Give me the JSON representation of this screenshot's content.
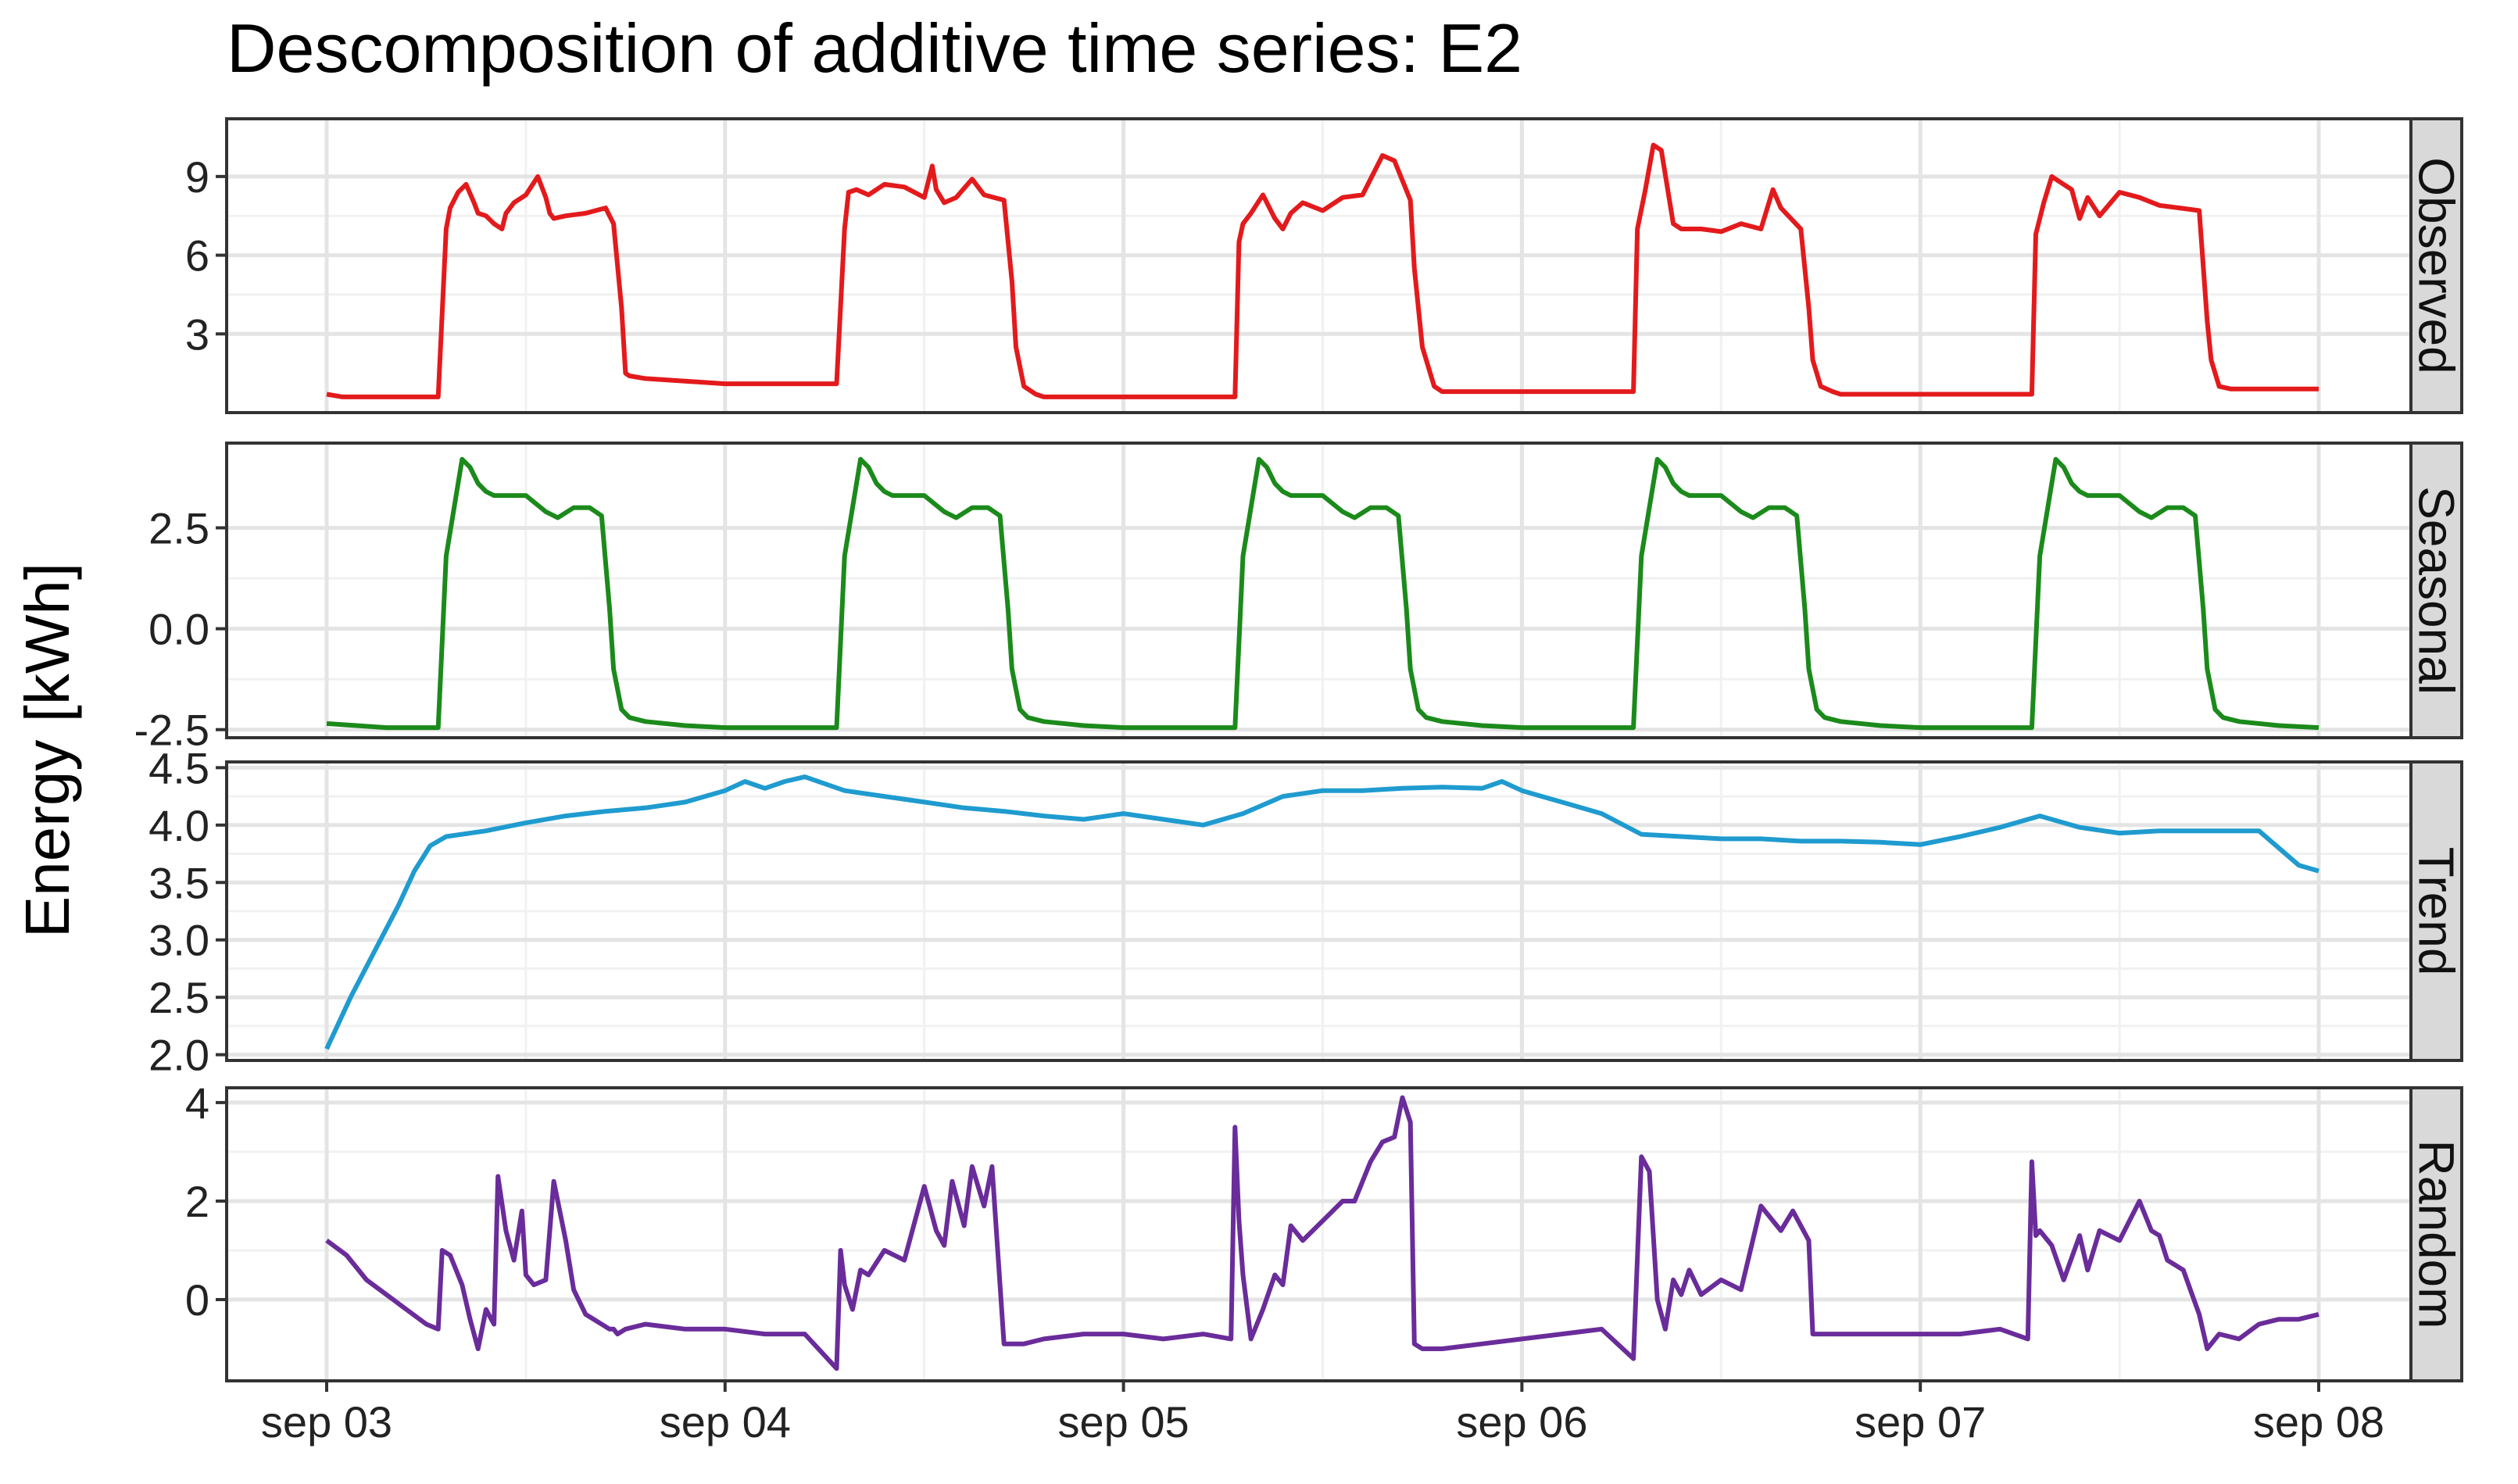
{
  "chart_data": {
    "type": "line",
    "title": "Descomposition of additive time series: E2",
    "ylabel": "Energy [kWh]",
    "xlabel": "",
    "x_ticks": [
      "sep 03",
      "sep 04",
      "sep 05",
      "sep 06",
      "sep 07",
      "sep 08"
    ],
    "x_range": [
      0,
      5
    ],
    "x_units": "days since sep 03",
    "colors": {
      "Observed": "#e31a1c",
      "Seasonal": "#1b8a1b",
      "Trend": "#1f9bcf",
      "Random": "#6a2c9a"
    },
    "panels": [
      {
        "name": "Observed",
        "ylim": [
          0,
          11.2
        ],
        "yticks": [
          3,
          6,
          9
        ],
        "ytick_labels": [
          "3",
          "6",
          "9"
        ],
        "x": [
          0,
          0.04,
          0.1,
          0.2,
          0.28,
          0.3,
          0.31,
          0.33,
          0.35,
          0.37,
          0.38,
          0.4,
          0.42,
          0.44,
          0.45,
          0.47,
          0.5,
          0.53,
          0.55,
          0.56,
          0.57,
          0.6,
          0.65,
          0.7,
          0.72,
          0.74,
          0.75,
          0.76,
          0.8,
          0.9,
          1.0,
          1.1,
          1.2,
          1.28,
          1.3,
          1.31,
          1.33,
          1.36,
          1.4,
          1.45,
          1.5,
          1.52,
          1.53,
          1.55,
          1.58,
          1.62,
          1.65,
          1.7,
          1.72,
          1.73,
          1.75,
          1.78,
          1.8,
          1.9,
          2.0,
          2.1,
          2.2,
          2.28,
          2.29,
          2.3,
          2.32,
          2.35,
          2.38,
          2.4,
          2.42,
          2.45,
          2.5,
          2.55,
          2.6,
          2.65,
          2.68,
          2.72,
          2.73,
          2.75,
          2.78,
          2.8,
          2.9,
          3.0,
          3.1,
          3.2,
          3.28,
          3.29,
          3.31,
          3.33,
          3.35,
          3.38,
          3.4,
          3.45,
          3.5,
          3.55,
          3.6,
          3.63,
          3.65,
          3.7,
          3.72,
          3.73,
          3.75,
          3.78,
          3.8,
          3.9,
          4.0,
          4.1,
          4.2,
          4.28,
          4.29,
          4.31,
          4.33,
          4.35,
          4.38,
          4.4,
          4.42,
          4.45,
          4.5,
          4.55,
          4.6,
          4.65,
          4.7,
          4.72,
          4.73,
          4.75,
          4.78,
          4.8,
          4.9,
          5.0
        ],
        "values": [
          0.7,
          0.6,
          0.6,
          0.6,
          0.6,
          7.0,
          7.8,
          8.4,
          8.7,
          8.0,
          7.6,
          7.5,
          7.2,
          7.0,
          7.6,
          8.0,
          8.3,
          9.0,
          8.2,
          7.6,
          7.4,
          7.5,
          7.6,
          7.8,
          7.2,
          4.0,
          1.5,
          1.4,
          1.3,
          1.2,
          1.1,
          1.1,
          1.1,
          1.1,
          7.0,
          8.4,
          8.5,
          8.3,
          8.7,
          8.6,
          8.2,
          9.4,
          8.5,
          8.0,
          8.2,
          8.9,
          8.3,
          8.1,
          5.0,
          2.5,
          1.0,
          0.7,
          0.6,
          0.6,
          0.6,
          0.6,
          0.6,
          0.6,
          6.5,
          7.2,
          7.6,
          8.3,
          7.4,
          7.0,
          7.6,
          8.0,
          7.7,
          8.2,
          8.3,
          9.8,
          9.6,
          8.1,
          5.5,
          2.5,
          1.0,
          0.8,
          0.8,
          0.8,
          0.8,
          0.8,
          0.8,
          7.0,
          8.5,
          10.2,
          10.0,
          7.2,
          7.0,
          7.0,
          6.9,
          7.2,
          7.0,
          8.5,
          7.8,
          7.0,
          4.0,
          2.0,
          1.0,
          0.8,
          0.7,
          0.7,
          0.7,
          0.7,
          0.7,
          0.7,
          6.8,
          8.0,
          9.0,
          8.8,
          8.5,
          7.4,
          8.2,
          7.5,
          8.4,
          8.2,
          7.9,
          7.8,
          7.7,
          3.5,
          2.0,
          1.0,
          0.9,
          0.9,
          0.9,
          0.9
        ]
      },
      {
        "name": "Seasonal",
        "ylim": [
          -2.7,
          4.6
        ],
        "yticks": [
          -2.5,
          0.0,
          2.5
        ],
        "ytick_labels": [
          "-2.5",
          "0.0",
          "2.5"
        ],
        "x": [
          0,
          0.15,
          0.28,
          0.3,
          0.32,
          0.34,
          0.36,
          0.38,
          0.4,
          0.42,
          0.45,
          0.5,
          0.55,
          0.58,
          0.62,
          0.66,
          0.69,
          0.71,
          0.72,
          0.74,
          0.76,
          0.8,
          0.9,
          1.0
        ],
        "values": [
          -2.35,
          -2.45,
          -2.45,
          1.8,
          3.0,
          4.2,
          4.0,
          3.6,
          3.4,
          3.3,
          3.3,
          3.3,
          2.9,
          2.75,
          3.0,
          3.0,
          2.8,
          0.5,
          -1.0,
          -2.0,
          -2.2,
          -2.3,
          -2.4,
          -2.45
        ],
        "period": 1,
        "note": "x values repeat with a one-day period across sep 03 to sep 08"
      },
      {
        "name": "Trend",
        "ylim": [
          1.95,
          4.55
        ],
        "yticks": [
          2.0,
          2.5,
          3.0,
          3.5,
          4.0,
          4.5
        ],
        "ytick_labels": [
          "2.0",
          "2.5",
          "3.0",
          "3.5",
          "4.0",
          "4.5"
        ],
        "x": [
          0,
          0.06,
          0.12,
          0.18,
          0.22,
          0.26,
          0.3,
          0.4,
          0.5,
          0.6,
          0.7,
          0.8,
          0.9,
          1.0,
          1.05,
          1.1,
          1.15,
          1.2,
          1.3,
          1.4,
          1.5,
          1.6,
          1.7,
          1.8,
          1.9,
          2.0,
          2.1,
          2.2,
          2.3,
          2.4,
          2.5,
          2.6,
          2.7,
          2.8,
          2.9,
          2.95,
          3.0,
          3.05,
          3.1,
          3.2,
          3.3,
          3.4,
          3.5,
          3.6,
          3.7,
          3.8,
          3.9,
          4.0,
          4.1,
          4.2,
          4.3,
          4.4,
          4.5,
          4.6,
          4.7,
          4.8,
          4.85,
          4.9,
          4.95,
          5.0
        ],
        "values": [
          2.05,
          2.5,
          2.9,
          3.3,
          3.6,
          3.82,
          3.9,
          3.95,
          4.02,
          4.08,
          4.12,
          4.15,
          4.2,
          4.3,
          4.38,
          4.32,
          4.38,
          4.42,
          4.3,
          4.25,
          4.2,
          4.15,
          4.12,
          4.08,
          4.05,
          4.1,
          4.05,
          4.0,
          4.1,
          4.25,
          4.3,
          4.3,
          4.32,
          4.33,
          4.32,
          4.38,
          4.3,
          4.25,
          4.2,
          4.1,
          3.92,
          3.9,
          3.88,
          3.88,
          3.86,
          3.86,
          3.85,
          3.83,
          3.9,
          3.98,
          4.08,
          3.98,
          3.93,
          3.95,
          3.95,
          3.95,
          3.95,
          3.8,
          3.65,
          3.6
        ]
      },
      {
        "name": "Random",
        "ylim": [
          -1.65,
          4.3
        ],
        "yticks": [
          0,
          2,
          4
        ],
        "ytick_labels": [
          "0",
          "2",
          "4"
        ],
        "x": [
          0,
          0.05,
          0.1,
          0.15,
          0.2,
          0.25,
          0.28,
          0.29,
          0.31,
          0.34,
          0.36,
          0.38,
          0.4,
          0.42,
          0.43,
          0.45,
          0.47,
          0.49,
          0.5,
          0.52,
          0.55,
          0.57,
          0.6,
          0.62,
          0.65,
          0.67,
          0.69,
          0.71,
          0.72,
          0.73,
          0.75,
          0.8,
          0.9,
          1.0,
          1.1,
          1.2,
          1.28,
          1.29,
          1.3,
          1.32,
          1.34,
          1.36,
          1.4,
          1.45,
          1.5,
          1.53,
          1.55,
          1.57,
          1.6,
          1.62,
          1.65,
          1.67,
          1.7,
          1.72,
          1.73,
          1.75,
          1.8,
          1.9,
          2.0,
          2.1,
          2.2,
          2.27,
          2.28,
          2.29,
          2.3,
          2.32,
          2.35,
          2.38,
          2.4,
          2.42,
          2.45,
          2.5,
          2.55,
          2.58,
          2.62,
          2.65,
          2.68,
          2.7,
          2.72,
          2.73,
          2.75,
          2.8,
          2.9,
          3.0,
          3.1,
          3.2,
          3.28,
          3.3,
          3.32,
          3.34,
          3.36,
          3.38,
          3.4,
          3.42,
          3.45,
          3.5,
          3.55,
          3.6,
          3.62,
          3.65,
          3.68,
          3.72,
          3.73,
          3.75,
          3.8,
          3.9,
          4.0,
          4.1,
          4.2,
          4.27,
          4.28,
          4.29,
          4.3,
          4.33,
          4.36,
          4.4,
          4.42,
          4.45,
          4.5,
          4.55,
          4.58,
          4.6,
          4.62,
          4.66,
          4.7,
          4.72,
          4.75,
          4.8,
          4.85,
          4.9,
          4.95,
          5.0
        ],
        "values": [
          1.2,
          0.9,
          0.4,
          0.1,
          -0.2,
          -0.5,
          -0.6,
          1.0,
          0.9,
          0.3,
          -0.4,
          -1.0,
          -0.2,
          -0.5,
          2.5,
          1.4,
          0.8,
          1.8,
          0.5,
          0.3,
          0.4,
          2.4,
          1.2,
          0.2,
          -0.3,
          -0.4,
          -0.5,
          -0.6,
          -0.6,
          -0.7,
          -0.6,
          -0.5,
          -0.6,
          -0.6,
          -0.7,
          -0.7,
          -1.4,
          1.0,
          0.3,
          -0.2,
          0.6,
          0.5,
          1.0,
          0.8,
          2.3,
          1.4,
          1.1,
          2.4,
          1.5,
          2.7,
          1.9,
          2.7,
          -0.9,
          -0.9,
          -0.9,
          -0.9,
          -0.8,
          -0.7,
          -0.7,
          -0.8,
          -0.7,
          -0.8,
          3.5,
          1.6,
          0.5,
          -0.8,
          -0.2,
          0.5,
          0.3,
          1.5,
          1.2,
          1.6,
          2.0,
          2.0,
          2.8,
          3.2,
          3.3,
          4.1,
          3.6,
          -0.9,
          -1.0,
          -1.0,
          -0.9,
          -0.8,
          -0.7,
          -0.6,
          -1.2,
          2.9,
          2.6,
          0.0,
          -0.6,
          0.4,
          0.1,
          0.6,
          0.1,
          0.4,
          0.2,
          1.9,
          1.7,
          1.4,
          1.8,
          1.2,
          -0.7,
          -0.7,
          -0.7,
          -0.7,
          -0.7,
          -0.7,
          -0.6,
          -0.8,
          2.8,
          1.3,
          1.4,
          1.1,
          0.4,
          1.3,
          0.6,
          1.4,
          1.2,
          2.0,
          1.4,
          1.3,
          0.8,
          0.6,
          -0.3,
          -1.0,
          -0.7,
          -0.8,
          -0.5,
          -0.4,
          -0.4,
          -0.3
        ]
      }
    ]
  }
}
